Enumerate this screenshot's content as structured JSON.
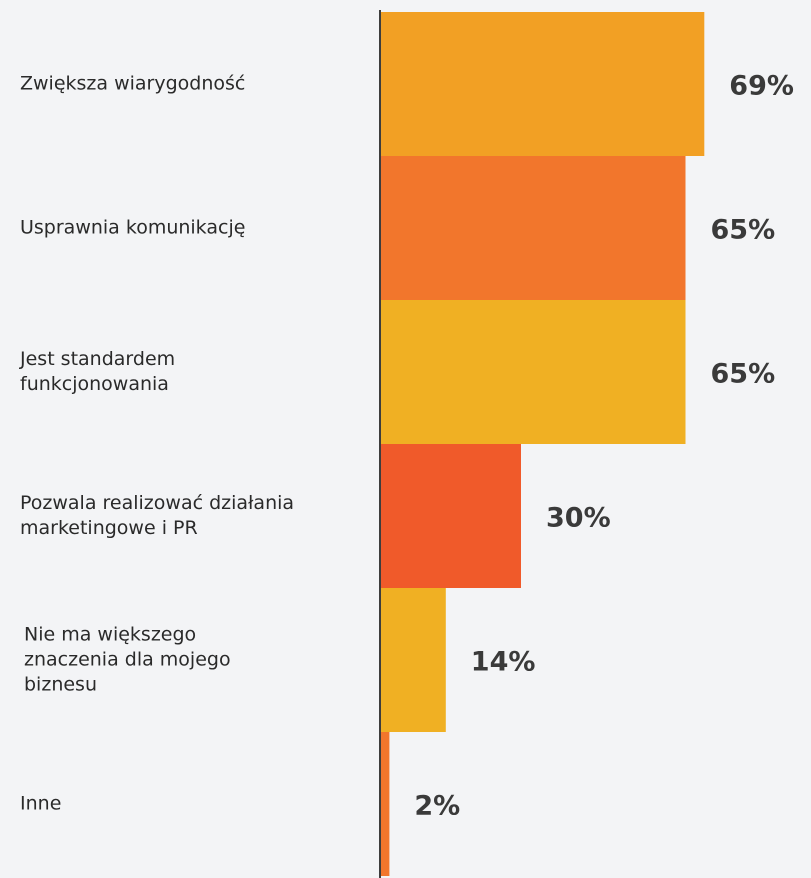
{
  "chart_data": {
    "type": "hbar",
    "categories": [
      "Zwiększa wiarygodność",
      "Usprawnia komunikację",
      "Jest standardem funkcjonowania",
      "Pozwala realizować działania marketingowe i PR",
      "Nie ma większego znaczenia dla mojego biznesu",
      "Inne"
    ],
    "values": [
      69,
      65,
      65,
      30,
      14,
      2
    ],
    "value_labels": [
      "69%",
      "65%",
      "65%",
      "30%",
      "14%",
      "2%"
    ],
    "colors": [
      "#f2a024",
      "#f2762c",
      "#f0b023",
      "#f05a2a",
      "#f0b023",
      "#f2762c"
    ]
  }
}
